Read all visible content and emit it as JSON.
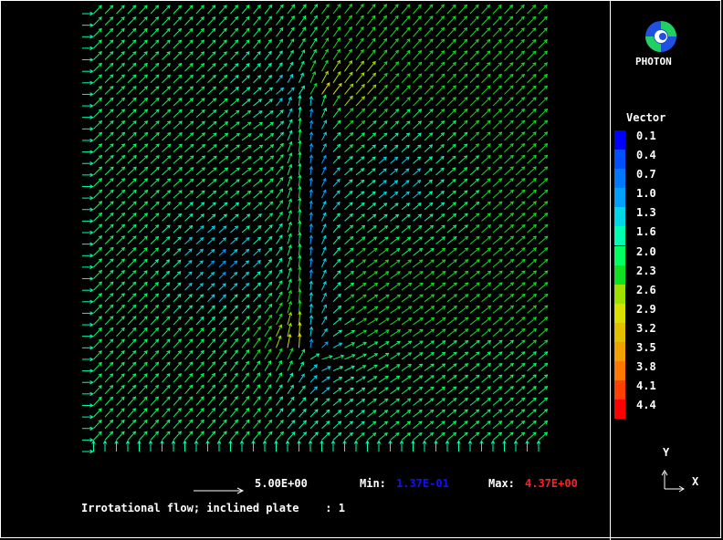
{
  "logo": {
    "icon": "photon-logo-icon",
    "word": "PHOTON"
  },
  "legend": {
    "title": "Vector",
    "levels": [
      {
        "label": "0.1",
        "color": "#0000ff"
      },
      {
        "label": "0.4",
        "color": "#0050ff"
      },
      {
        "label": "0.7",
        "color": "#0078ff"
      },
      {
        "label": "1.0",
        "color": "#00a0ff"
      },
      {
        "label": "1.3",
        "color": "#00d8e8"
      },
      {
        "label": "1.6",
        "color": "#00ffb0"
      },
      {
        "label": "2.0",
        "color": "#00ff60"
      },
      {
        "label": "2.3",
        "color": "#10e020"
      },
      {
        "label": "2.6",
        "color": "#a0e000"
      },
      {
        "label": "2.9",
        "color": "#d8e000"
      },
      {
        "label": "3.2",
        "color": "#e0c000"
      },
      {
        "label": "3.5",
        "color": "#f0a000"
      },
      {
        "label": "3.8",
        "color": "#ff7800"
      },
      {
        "label": "4.1",
        "color": "#ff4000"
      },
      {
        "label": "4.4",
        "color": "#ff0000"
      }
    ]
  },
  "footer": {
    "scale_value": "5.00E+00",
    "min_label": "Min:",
    "min_value": "1.37E-01",
    "max_label": "Max:",
    "max_value": "4.37E+00",
    "caption": "Irrotational flow; inclined plate    : 1"
  },
  "axes_indicator": {
    "y_label": "Y",
    "x_label": "X"
  },
  "colors": {
    "min": "#0000ff",
    "max": "#ff0000",
    "background": "#000000"
  },
  "chart_data": {
    "type": "vector-field",
    "title": "Irrotational flow; inclined plate",
    "variable": "Vector",
    "grid": {
      "nx": 40,
      "ny": 38
    },
    "domain": {
      "x": [
        0,
        1
      ],
      "y": [
        0,
        1
      ]
    },
    "min_magnitude": 0.137,
    "max_magnitude": 4.37,
    "reference_vector": 5.0,
    "inlet_direction": "+x along left edge, +y along bottom edge",
    "plate": {
      "x_center": 0.49,
      "y_top": 0.8,
      "y_bottom": 0.22,
      "tilt": "slightly inclined"
    },
    "color_levels": [
      0.1,
      0.4,
      0.7,
      1.0,
      1.3,
      1.6,
      2.0,
      2.3,
      2.6,
      2.9,
      3.2,
      3.5,
      3.8,
      4.1,
      4.4
    ]
  }
}
